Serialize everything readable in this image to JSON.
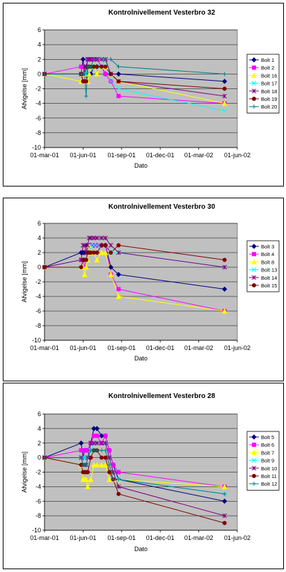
{
  "charts": [
    {
      "title": "Kontrolnivellement Vesterbro 32",
      "xlabel": "Dato",
      "ylabel": "Afvigelse [mm]",
      "ylim": [
        -10,
        6
      ],
      "yticks": [
        -10,
        -8,
        -6,
        -4,
        -2,
        0,
        2,
        4,
        6
      ],
      "xticks": [
        "01-mar-01",
        "01-jun-01",
        "01-sep-01",
        "01-dec-01",
        "01-mar-02",
        "01-jun-02"
      ],
      "xlim_days": [
        0,
        500
      ],
      "legend_position": "right",
      "series": [
        {
          "name": "Bolt 1",
          "color": "#000080",
          "marker": "diamond",
          "x": [
            0,
            95,
            100,
            104,
            108,
            112,
            116,
            120,
            128,
            136,
            148,
            158,
            172,
            192,
            467
          ],
          "y": [
            0,
            0,
            2,
            0,
            1,
            0,
            0,
            0,
            1,
            1,
            1,
            0,
            0,
            0,
            -1
          ]
        },
        {
          "name": "Bolt 2",
          "color": "#ff00ff",
          "marker": "square",
          "x": [
            0,
            95,
            100,
            104,
            108,
            112,
            116,
            120,
            128,
            136,
            148,
            158,
            172,
            192,
            467
          ],
          "y": [
            0,
            1,
            -1,
            -1,
            -1,
            2,
            2,
            2,
            2,
            2,
            1,
            0,
            -1,
            -3,
            -4
          ]
        },
        {
          "name": "Bolt 16",
          "color": "#ffff00",
          "marker": "triangle",
          "x": [
            0,
            95,
            100,
            104,
            108,
            112,
            116,
            120,
            128,
            136,
            148,
            158,
            172,
            192,
            467
          ],
          "y": [
            0,
            -1,
            0,
            0,
            -1,
            -1,
            0,
            1,
            1,
            0,
            1,
            1,
            0,
            -1,
            -4
          ]
        },
        {
          "name": "Bolt 17",
          "color": "#00ffff",
          "marker": "x",
          "x": [
            0,
            95,
            100,
            104,
            108,
            112,
            116,
            120,
            128,
            136,
            148,
            158,
            172,
            192,
            467
          ],
          "y": [
            0,
            0,
            0,
            0,
            0,
            1,
            1,
            1,
            1,
            1,
            1,
            2,
            -1,
            -2,
            -5
          ]
        },
        {
          "name": "Bolt 18",
          "color": "#800080",
          "marker": "star",
          "x": [
            0,
            95,
            100,
            104,
            108,
            112,
            116,
            120,
            128,
            136,
            148,
            158,
            172,
            192,
            467
          ],
          "y": [
            0,
            0,
            0,
            1,
            1,
            2,
            2,
            2,
            2,
            2,
            2,
            2,
            0,
            -1,
            -3
          ]
        },
        {
          "name": "Bolt 19",
          "color": "#800000",
          "marker": "circle",
          "x": [
            0,
            95,
            100,
            104,
            108,
            112,
            116,
            120,
            128,
            136,
            148,
            158,
            172,
            192,
            467
          ],
          "y": [
            0,
            0,
            -1,
            -1,
            -1,
            1,
            1,
            1,
            1,
            1,
            1,
            1,
            0,
            -1,
            -2
          ]
        },
        {
          "name": "Bolt 20",
          "color": "#008080",
          "marker": "plus",
          "x": [
            0,
            95,
            100,
            104,
            108,
            112,
            116,
            120,
            128,
            136,
            148,
            158,
            172,
            192,
            467
          ],
          "y": [
            0,
            0,
            0,
            0,
            -3,
            1,
            1,
            1,
            2,
            2,
            2,
            2,
            2,
            1,
            0
          ]
        }
      ]
    },
    {
      "title": "Kontrolnivellement Vesterbro 30",
      "xlabel": "Dato",
      "ylabel": "Afvigelse [mm]",
      "ylim": [
        -10,
        6
      ],
      "yticks": [
        -10,
        -8,
        -6,
        -4,
        -2,
        0,
        2,
        4,
        6
      ],
      "xticks": [
        "01-mar-01",
        "01-jun-01",
        "01-sep-01",
        "01-dec-01",
        "01-mar-02",
        "01-jun-02"
      ],
      "xlim_days": [
        0,
        500
      ],
      "legend_position": "right",
      "series": [
        {
          "name": "Bolt 3",
          "color": "#000080",
          "marker": "diamond",
          "x": [
            0,
            95,
            100,
            104,
            108,
            112,
            116,
            120,
            128,
            136,
            148,
            158,
            172,
            192,
            467
          ],
          "y": [
            0,
            2,
            2,
            2,
            2,
            3,
            3,
            3,
            3,
            3,
            3,
            3,
            0,
            -1,
            -3
          ]
        },
        {
          "name": "Bolt 4",
          "color": "#ff00ff",
          "marker": "square",
          "x": [
            0,
            95,
            100,
            104,
            108,
            112,
            116,
            120,
            128,
            136,
            148,
            158,
            172,
            192,
            467
          ],
          "y": [
            0,
            1,
            1,
            0,
            1,
            2,
            3,
            3,
            3,
            3,
            3,
            3,
            -1,
            -3,
            -6
          ]
        },
        {
          "name": "Bolt 8",
          "color": "#ffff00",
          "marker": "triangle",
          "x": [
            0,
            95,
            100,
            104,
            108,
            112,
            116,
            120,
            128,
            136,
            148,
            158,
            172,
            192,
            467
          ],
          "y": [
            0,
            0,
            0,
            -1,
            0,
            1,
            3,
            2,
            2,
            1,
            2,
            2,
            -1,
            -4,
            -6
          ]
        },
        {
          "name": "Bolt 13",
          "color": "#00ffff",
          "marker": "x",
          "x": [
            0,
            95,
            100,
            104,
            108,
            112,
            116,
            120,
            128,
            136,
            148,
            158,
            172,
            192,
            467
          ],
          "y": [
            0,
            1,
            1,
            1,
            1,
            2,
            2,
            3,
            3,
            3,
            3,
            3,
            2,
            2,
            0
          ]
        },
        {
          "name": "Bolt 14",
          "color": "#800080",
          "marker": "star",
          "x": [
            0,
            95,
            100,
            104,
            108,
            112,
            116,
            120,
            128,
            136,
            148,
            158,
            172,
            192,
            467
          ],
          "y": [
            0,
            1,
            3,
            3,
            2,
            3,
            4,
            4,
            4,
            4,
            4,
            4,
            3,
            2,
            0
          ]
        },
        {
          "name": "Bolt 15",
          "color": "#800000",
          "marker": "circle",
          "x": [
            0,
            95,
            100,
            104,
            108,
            112,
            116,
            120,
            128,
            136,
            148,
            158,
            172,
            192,
            467
          ],
          "y": [
            0,
            0,
            1,
            1,
            1,
            2,
            2,
            2,
            2,
            2,
            3,
            3,
            2,
            3,
            1
          ]
        }
      ]
    },
    {
      "title": "Kontrolnivellement Vesterbro 28",
      "xlabel": "Dato",
      "ylabel": "Afvigelse [mm]",
      "ylim": [
        -10,
        6
      ],
      "yticks": [
        -10,
        -8,
        -6,
        -4,
        -2,
        0,
        2,
        4,
        6
      ],
      "xticks": [
        "01-mar-01",
        "01-jun-01",
        "01-sep-01",
        "01-dec-01",
        "01-mar-02",
        "01-jun-02"
      ],
      "xlim_days": [
        0,
        500
      ],
      "legend_position": "right",
      "series": [
        {
          "name": "Bolt 5",
          "color": "#000080",
          "marker": "diamond",
          "x": [
            0,
            95,
            100,
            104,
            108,
            112,
            120,
            128,
            136,
            148,
            158,
            168,
            178,
            192,
            467
          ],
          "y": [
            0,
            2,
            0,
            1,
            1,
            1,
            2,
            4,
            4,
            3,
            3,
            1,
            -1,
            -3,
            -6
          ]
        },
        {
          "name": "Bolt 6",
          "color": "#ff00ff",
          "marker": "square",
          "x": [
            0,
            95,
            100,
            104,
            108,
            112,
            120,
            128,
            136,
            148,
            158,
            168,
            178,
            192,
            467
          ],
          "y": [
            0,
            1,
            1,
            1,
            1,
            1,
            2,
            3,
            3,
            2,
            3,
            1,
            -1,
            -2,
            -4
          ]
        },
        {
          "name": "Bolt 7",
          "color": "#ffff00",
          "marker": "triangle",
          "x": [
            0,
            95,
            100,
            104,
            108,
            112,
            120,
            128,
            136,
            148,
            158,
            168,
            178,
            192,
            467
          ],
          "y": [
            0,
            -1,
            -3,
            -3,
            -3,
            -4,
            -3,
            -1,
            -1,
            -1,
            -1,
            -3,
            -3,
            -3,
            -4
          ]
        },
        {
          "name": "Bolt 9",
          "color": "#00ffff",
          "marker": "x",
          "x": [
            0,
            95,
            100,
            104,
            108,
            112,
            120,
            128,
            136,
            148,
            158,
            168,
            178,
            192,
            467
          ],
          "y": [
            0,
            0,
            0,
            0,
            0,
            0,
            1,
            2,
            2,
            2,
            2,
            0,
            -2,
            -3,
            -5
          ]
        },
        {
          "name": "Bolt 10",
          "color": "#800080",
          "marker": "star",
          "x": [
            0,
            95,
            100,
            104,
            108,
            112,
            120,
            128,
            136,
            148,
            158,
            168,
            178,
            192,
            467
          ],
          "y": [
            0,
            0,
            -1,
            -1,
            -1,
            0,
            2,
            2,
            2,
            2,
            2,
            0,
            -2,
            -4,
            -8
          ]
        },
        {
          "name": "Bolt 11",
          "color": "#800000",
          "marker": "circle",
          "x": [
            0,
            95,
            100,
            104,
            108,
            112,
            120,
            128,
            136,
            148,
            158,
            168,
            178,
            192,
            467
          ],
          "y": [
            0,
            -1,
            -2,
            -2,
            -2,
            -2,
            0,
            1,
            1,
            0,
            0,
            -2,
            -3,
            -5,
            -9
          ]
        },
        {
          "name": "Bolt 12",
          "color": "#008080",
          "marker": "plus",
          "x": [
            0,
            95,
            100,
            104,
            108,
            112,
            120,
            128,
            136,
            148,
            158,
            168,
            178,
            192,
            467
          ],
          "y": [
            0,
            0,
            -1,
            -1,
            -1,
            0,
            1,
            1,
            1,
            1,
            1,
            -1,
            -3,
            -3,
            -5
          ]
        }
      ]
    }
  ]
}
